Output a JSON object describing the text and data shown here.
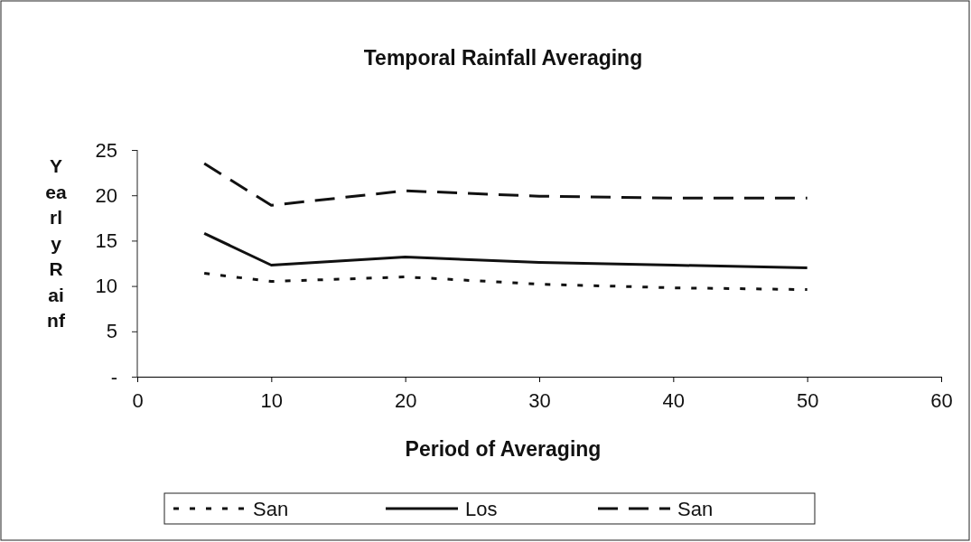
{
  "chart_data": {
    "type": "line",
    "title": "Temporal Rainfall Averaging",
    "xlabel": "Period of Averaging",
    "ylabel": "Yearly Rainf",
    "x": [
      5,
      10,
      20,
      30,
      40,
      50
    ],
    "series": [
      {
        "name": "San",
        "color": "#111111",
        "line_style": "dotted",
        "values": [
          11.4,
          10.5,
          11.0,
          10.2,
          9.8,
          9.6
        ]
      },
      {
        "name": "Los",
        "color": "#111111",
        "line_style": "solid",
        "values": [
          15.8,
          12.3,
          13.2,
          12.6,
          12.3,
          12.0
        ]
      },
      {
        "name": "San",
        "color": "#111111",
        "line_style": "dashed",
        "values": [
          23.5,
          18.9,
          20.5,
          19.9,
          19.7,
          19.7
        ]
      }
    ],
    "xlim": [
      0,
      60
    ],
    "xticks": [
      0,
      10,
      20,
      30,
      40,
      50,
      60
    ],
    "ylim": [
      0,
      25
    ],
    "yticks": [
      {
        "value": 0,
        "label": "-"
      },
      5,
      10,
      15,
      20,
      25
    ],
    "legend": "bottom",
    "grid": false,
    "marker": "none"
  }
}
